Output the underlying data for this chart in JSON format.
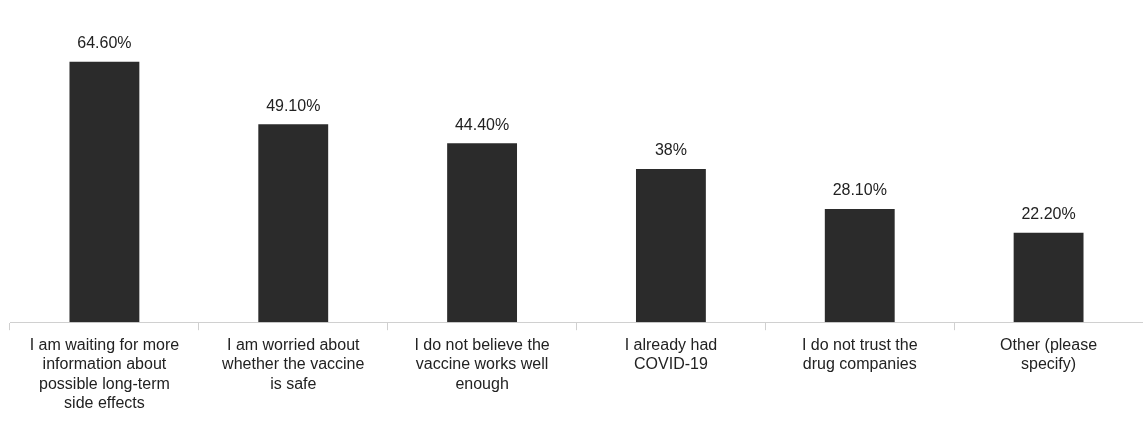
{
  "chart_data": {
    "type": "bar",
    "categories": [
      "I am waiting for more information about possible long-term side effects",
      "I am worried about whether the vaccine is safe",
      "I do not believe the vaccine works well enough",
      "I already had COVID-19",
      "I do not trust the drug companies",
      "Other (please specify)"
    ],
    "values": [
      64.6,
      49.1,
      44.4,
      38,
      28.1,
      22.2
    ],
    "value_labels": [
      "64.60%",
      "49.10%",
      "44.40%",
      "38%",
      "28.10%",
      "22.20%"
    ],
    "color": "#2b2b2b"
  }
}
